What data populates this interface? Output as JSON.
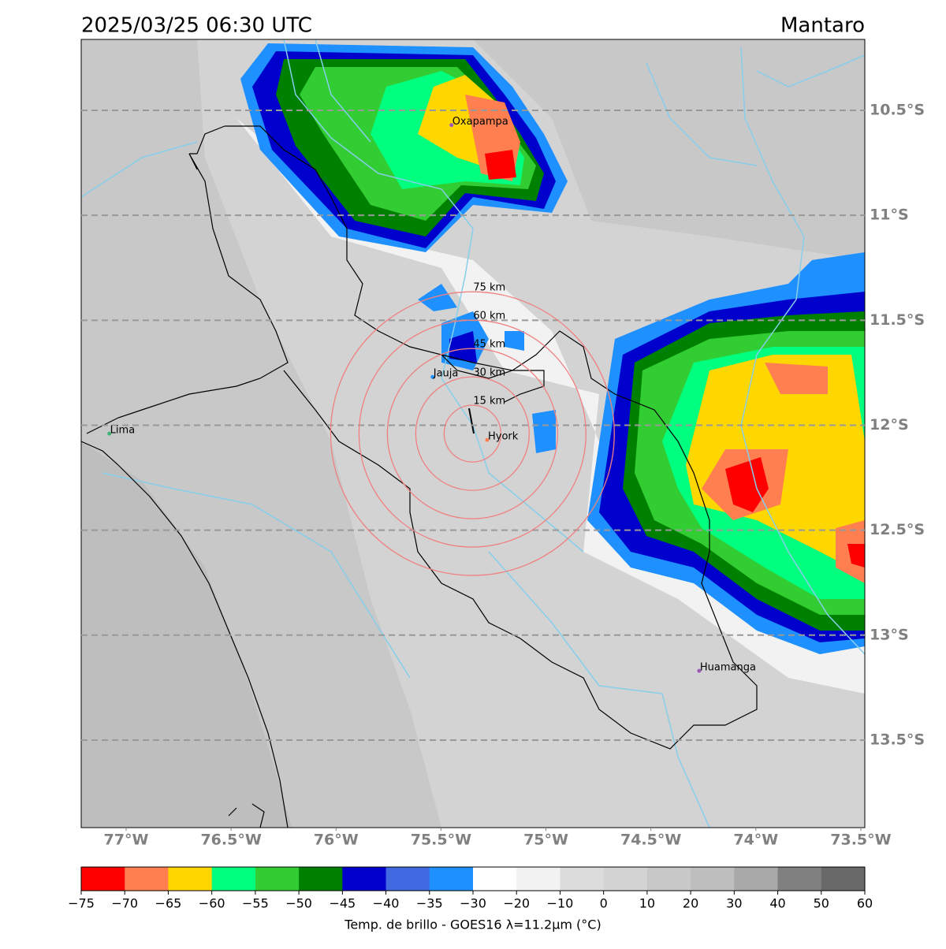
{
  "chart_data": {
    "type": "map",
    "title": "2025/03/25 06:30 UTC",
    "region": "Mantaro",
    "lonlim": [
      -77.214,
      -73.481
    ],
    "latlim": [
      -13.917,
      -10.162
    ],
    "lon_ticks": [
      {
        "value": -77,
        "label": "77°W"
      },
      {
        "value": -76.5,
        "label": "76.5°W"
      },
      {
        "value": -76,
        "label": "76°W"
      },
      {
        "value": -75.5,
        "label": "75.5°W"
      },
      {
        "value": -75,
        "label": "75°W"
      },
      {
        "value": -74.5,
        "label": "74.5°W"
      },
      {
        "value": -74,
        "label": "74°W"
      },
      {
        "value": -73.5,
        "label": "73.5°W"
      }
    ],
    "lat_ticks": [
      {
        "value": -10.5,
        "label": "10.5°S"
      },
      {
        "value": -11,
        "label": "11°S"
      },
      {
        "value": -11.5,
        "label": "11.5°S"
      },
      {
        "value": -12,
        "label": "12°S"
      },
      {
        "value": -12.5,
        "label": "12.5°S"
      },
      {
        "value": -13,
        "label": "13°S"
      },
      {
        "value": -13.5,
        "label": "13.5°S"
      }
    ],
    "grid": true,
    "cities": [
      {
        "name": "Lima",
        "lon": -77.08,
        "lat": -12.04,
        "color": "#3cb371"
      },
      {
        "name": "Oxapampa",
        "lon": -75.45,
        "lat": -10.57,
        "color": "#9b59b6"
      },
      {
        "name": "Jauja",
        "lon": -75.54,
        "lat": -11.77,
        "color": "#1e90ff"
      },
      {
        "name": "Hyork",
        "lon": -75.28,
        "lat": -12.07,
        "color": "#ff7f50"
      },
      {
        "name": "Huamanga",
        "lon": -74.27,
        "lat": -13.17,
        "color": "#9b59b6"
      }
    ],
    "radar": {
      "lon": -75.35,
      "lat": -12.04,
      "color": "#f08080",
      "rings": [
        {
          "value": 15,
          "label": "15 km"
        },
        {
          "value": 30,
          "label": "30 km"
        },
        {
          "value": 45,
          "label": "45 km"
        },
        {
          "value": 60,
          "label": "60 km"
        },
        {
          "value": 75,
          "label": "75 km"
        }
      ]
    },
    "colorbar": {
      "label": "Temp. de brillo - GOES16 λ=11.2μm (°C)",
      "ticks": [
        {
          "value": -75,
          "label": "−75"
        },
        {
          "value": -70,
          "label": "−70"
        },
        {
          "value": -65,
          "label": "−65"
        },
        {
          "value": -60,
          "label": "−60"
        },
        {
          "value": -55,
          "label": "−55"
        },
        {
          "value": -50,
          "label": "−50"
        },
        {
          "value": -45,
          "label": "−45"
        },
        {
          "value": -40,
          "label": "−40"
        },
        {
          "value": -35,
          "label": "−35"
        },
        {
          "value": -30,
          "label": "−30"
        },
        {
          "value": -20,
          "label": "−20"
        },
        {
          "value": -10,
          "label": "−10"
        },
        0,
        10,
        20,
        30,
        40,
        50,
        60
      ],
      "colors": [
        "#ff0000",
        "#ff7f50",
        "#ffd700",
        "#00ff7f",
        "#32cd32",
        "#008000",
        "#0000cd",
        "#4169e1",
        "#1e90ff",
        "#ffffff",
        "#f2f2f2",
        "#dcdcdc",
        "#d3d3d3",
        "#c8c8c8",
        "#bebebe",
        "#a9a9a9",
        "#808080",
        "#696969",
        "#000000"
      ]
    }
  }
}
